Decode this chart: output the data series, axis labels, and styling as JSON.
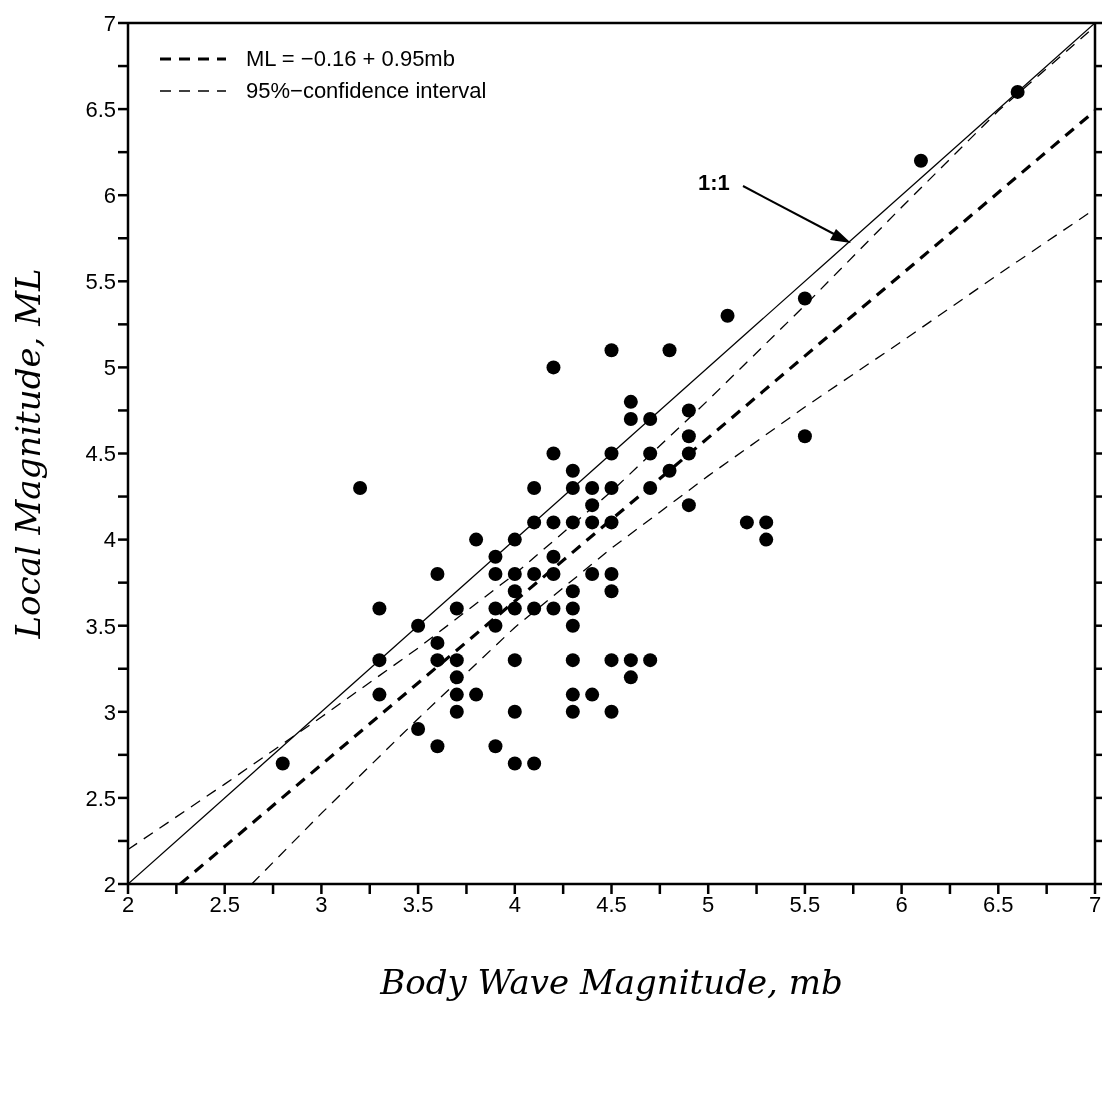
{
  "chart_data": {
    "type": "scatter",
    "xlabel": "Body Wave Magnitude, mb",
    "ylabel": "Local Magnitude, ML",
    "xlim": [
      2,
      7
    ],
    "xticks": [
      2,
      {
        "value": 2.25,
        "label": null
      },
      2.5,
      {
        "value": 2.75,
        "label": null
      },
      3,
      {
        "value": 3.25,
        "label": null
      },
      3.5,
      {
        "value": 3.75,
        "label": null
      },
      4,
      {
        "value": 4.25,
        "label": null
      },
      4.5,
      {
        "value": 4.75,
        "label": null
      },
      5,
      {
        "value": 5.25,
        "label": null
      },
      5.5,
      {
        "value": 5.75,
        "label": null
      },
      6,
      {
        "value": 6.25,
        "label": null
      },
      6.5,
      {
        "value": 6.75,
        "label": null
      },
      7
    ],
    "ylim": [
      2,
      7
    ],
    "yticks": [
      2,
      {
        "value": 2.25,
        "label": null
      },
      2.5,
      {
        "value": 2.75,
        "label": null
      },
      3,
      {
        "value": 3.25,
        "label": null
      },
      3.5,
      {
        "value": 3.75,
        "label": null
      },
      4,
      {
        "value": 4.25,
        "label": null
      },
      4.5,
      {
        "value": 4.75,
        "label": null
      },
      5,
      {
        "value": 5.25,
        "label": null
      },
      5.5,
      {
        "value": 5.75,
        "label": null
      },
      6,
      {
        "value": 6.25,
        "label": null
      },
      6.5,
      {
        "value": 6.75,
        "label": null
      },
      7
    ],
    "legend": "top left",
    "annotations": [
      "1:1"
    ],
    "series": [
      {
        "color": "#000000",
        "marker": "circle",
        "x": [
          2.8,
          3.2,
          3.3,
          3.3,
          3.3,
          3.5,
          3.5,
          3.6,
          3.6,
          3.6,
          3.6,
          3.7,
          3.7,
          3.7,
          3.7,
          3.7,
          3.8,
          3.8,
          3.9,
          3.9,
          3.9,
          3.9,
          3.9,
          4.0,
          4.0,
          4.0,
          4.0,
          4.0,
          4.0,
          4.0,
          4.1,
          4.1,
          4.1,
          4.1,
          4.1,
          4.2,
          4.2,
          4.2,
          4.2,
          4.2,
          4.2,
          4.3,
          4.3,
          4.3,
          4.3,
          4.3,
          4.3,
          4.3,
          4.3,
          4.3,
          4.4,
          4.4,
          4.4,
          4.4,
          4.4,
          4.5,
          4.5,
          4.5,
          4.5,
          4.5,
          4.5,
          4.5,
          4.5,
          4.6,
          4.6,
          4.6,
          4.6,
          4.7,
          4.7,
          4.7,
          4.7,
          4.8,
          4.8,
          4.9,
          4.9,
          4.9,
          4.9,
          5.1,
          5.2,
          5.3,
          5.3,
          5.5,
          5.5,
          6.1,
          6.6
        ],
        "values": [
          2.7,
          4.3,
          3.6,
          3.3,
          3.1,
          3.5,
          2.9,
          3.8,
          3.4,
          3.3,
          2.8,
          3.6,
          3.3,
          3.2,
          3.1,
          3.0,
          4.0,
          3.1,
          3.9,
          3.8,
          3.6,
          3.5,
          2.8,
          4.0,
          3.8,
          3.7,
          3.6,
          3.3,
          3.0,
          2.7,
          4.3,
          4.1,
          3.8,
          3.6,
          2.7,
          5.0,
          4.5,
          4.1,
          3.9,
          3.8,
          3.6,
          4.4,
          4.3,
          4.1,
          3.7,
          3.6,
          3.5,
          3.3,
          3.1,
          3.0,
          4.3,
          4.2,
          4.1,
          3.8,
          3.1,
          5.1,
          4.5,
          4.3,
          4.1,
          3.8,
          3.7,
          3.3,
          3.0,
          4.8,
          4.7,
          3.3,
          3.2,
          4.7,
          4.5,
          4.3,
          3.3,
          5.1,
          4.4,
          4.75,
          4.6,
          4.5,
          4.2,
          5.3,
          4.1,
          4.1,
          4.0,
          5.4,
          4.6,
          6.2,
          6.6
        ]
      },
      {
        "type": "line",
        "color": "#000000",
        "line_style": "solid",
        "x": [
          2,
          7
        ],
        "values": [
          2,
          7
        ]
      },
      {
        "type": "line",
        "name": "ML = −0.16 + 0.95mb",
        "color": "#000000",
        "line_style": "dashed",
        "x": [
          2.27,
          7
        ],
        "values": [
          2.0,
          6.49
        ]
      },
      {
        "type": "line",
        "name": "95%−confidence interval",
        "color": "#000000",
        "line_style": "dashed",
        "x": [
          2,
          2.5,
          3,
          3.5,
          4,
          4.5,
          5,
          5.5,
          6,
          6.5,
          7
        ],
        "values": [
          2.2,
          2.58,
          2.97,
          3.37,
          3.8,
          4.28,
          4.81,
          5.36,
          5.93,
          6.49,
          6.98
        ]
      },
      {
        "type": "line",
        "color": "#000000",
        "line_style": "dashed",
        "x": [
          2.64,
          3,
          3.5,
          4,
          4.5,
          5,
          5.5,
          6,
          6.5,
          7
        ],
        "values": [
          2.0,
          2.41,
          2.96,
          3.49,
          3.95,
          4.37,
          4.77,
          5.15,
          5.54,
          5.92
        ]
      }
    ]
  }
}
